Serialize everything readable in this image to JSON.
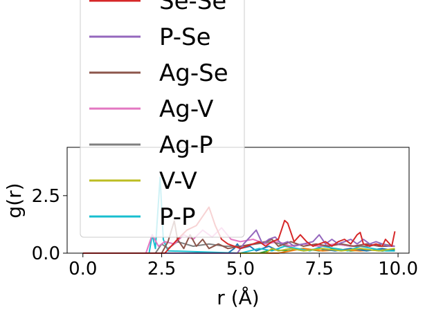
{
  "chart_data": {
    "type": "line",
    "title": "",
    "xlabel": "r (Å)",
    "ylabel": "g(r)",
    "xlim": [
      -0.5,
      10.35
    ],
    "ylim": [
      0,
      4.6
    ],
    "xticks": [
      "0.0",
      "2.5",
      "5.0",
      "7.5",
      "10.0"
    ],
    "xtick_values": [
      0,
      2.5,
      5,
      7.5,
      10
    ],
    "yticks": [
      "0.0",
      "2.5"
    ],
    "ytick_values": [
      0,
      2.5
    ],
    "grid": false,
    "legend_position": "upper-left, extending above the axes",
    "series": [
      {
        "name": "Se-Se",
        "color": "#d62728",
        "points": [
          [
            0,
            0
          ],
          [
            2.0,
            0
          ],
          [
            2.6,
            0
          ],
          [
            3.0,
            0.6
          ],
          [
            3.3,
            1.0
          ],
          [
            3.6,
            1.2
          ],
          [
            3.8,
            1.6
          ],
          [
            4.0,
            2.0
          ],
          [
            4.2,
            1.2
          ],
          [
            4.4,
            0.6
          ],
          [
            4.6,
            0.4
          ],
          [
            4.8,
            0.3
          ],
          [
            5.0,
            0.2
          ],
          [
            5.2,
            0.3
          ],
          [
            5.4,
            0.4
          ],
          [
            5.6,
            0.5
          ],
          [
            5.8,
            0.3
          ],
          [
            6.0,
            0.5
          ],
          [
            6.2,
            0.6
          ],
          [
            6.3,
            1.0
          ],
          [
            6.4,
            1.42
          ],
          [
            6.5,
            1.3
          ],
          [
            6.6,
            0.9
          ],
          [
            6.7,
            0.5
          ],
          [
            6.9,
            0.8
          ],
          [
            7.1,
            0.5
          ],
          [
            7.3,
            0.3
          ],
          [
            7.5,
            0.4
          ],
          [
            7.7,
            0.5
          ],
          [
            7.9,
            0.3
          ],
          [
            8.1,
            0.5
          ],
          [
            8.3,
            0.6
          ],
          [
            8.5,
            0.4
          ],
          [
            8.7,
            0.8
          ],
          [
            8.8,
            0.9
          ],
          [
            8.9,
            0.4
          ],
          [
            9.1,
            0.3
          ],
          [
            9.3,
            0.4
          ],
          [
            9.5,
            0.3
          ],
          [
            9.6,
            0.6
          ],
          [
            9.8,
            0.3
          ],
          [
            9.9,
            0.95
          ]
        ]
      },
      {
        "name": "P-Se",
        "color": "#9467bd",
        "points": [
          [
            0,
            0
          ],
          [
            4.9,
            0
          ],
          [
            5.1,
            0.4
          ],
          [
            5.3,
            0.7
          ],
          [
            5.5,
            1.0
          ],
          [
            5.7,
            0.4
          ],
          [
            5.9,
            0.6
          ],
          [
            6.1,
            0.7
          ],
          [
            6.3,
            0.4
          ],
          [
            6.5,
            0.5
          ],
          [
            6.7,
            0.3
          ],
          [
            7.0,
            0.4
          ],
          [
            7.3,
            0.5
          ],
          [
            7.5,
            0.8
          ],
          [
            7.7,
            0.4
          ],
          [
            7.9,
            0.6
          ],
          [
            8.1,
            0.4
          ],
          [
            8.3,
            0.5
          ],
          [
            8.5,
            0.6
          ],
          [
            8.7,
            0.4
          ],
          [
            8.9,
            0.6
          ],
          [
            9.1,
            0.4
          ],
          [
            9.3,
            0.5
          ],
          [
            9.5,
            0.4
          ],
          [
            9.7,
            0.3
          ],
          [
            9.9,
            0.3
          ]
        ]
      },
      {
        "name": "Ag-Se",
        "color": "#8c564b",
        "points": [
          [
            0,
            0
          ],
          [
            2.5,
            0
          ],
          [
            2.7,
            0.5
          ],
          [
            2.9,
            1.4
          ],
          [
            3.0,
            0.6
          ],
          [
            3.2,
            0.2
          ],
          [
            3.4,
            0.8
          ],
          [
            3.6,
            0.3
          ],
          [
            3.8,
            0.6
          ],
          [
            4.0,
            0.2
          ],
          [
            4.3,
            0.4
          ],
          [
            4.6,
            0.2
          ],
          [
            5.0,
            0.3
          ],
          [
            5.4,
            0.4
          ],
          [
            5.8,
            0.5
          ],
          [
            6.0,
            0.6
          ],
          [
            6.2,
            0.3
          ],
          [
            6.6,
            0.5
          ],
          [
            7.0,
            0.3
          ],
          [
            7.4,
            0.4
          ],
          [
            7.8,
            0.3
          ],
          [
            8.2,
            0.4
          ],
          [
            8.6,
            0.3
          ],
          [
            9.0,
            0.4
          ],
          [
            9.4,
            0.3
          ],
          [
            9.9,
            0.3
          ]
        ]
      },
      {
        "name": "Ag-V",
        "color": "#e377c2",
        "points": [
          [
            0,
            0
          ],
          [
            2.0,
            0
          ],
          [
            2.2,
            0.8
          ],
          [
            2.4,
            0.3
          ],
          [
            2.6,
            0.5
          ],
          [
            2.9,
            0.4
          ],
          [
            3.2,
            0.8
          ],
          [
            3.5,
            0.6
          ],
          [
            3.8,
            1.0
          ],
          [
            4.1,
            0.7
          ],
          [
            4.4,
            1.1
          ],
          [
            4.7,
            0.6
          ],
          [
            5.0,
            0.5
          ],
          [
            5.4,
            0.6
          ],
          [
            5.8,
            0.4
          ],
          [
            6.2,
            0.5
          ],
          [
            6.6,
            0.3
          ],
          [
            7.0,
            0.4
          ],
          [
            7.5,
            0.3
          ],
          [
            8.0,
            0.4
          ],
          [
            8.5,
            0.3
          ],
          [
            9.0,
            0.4
          ],
          [
            9.5,
            0.3
          ],
          [
            9.9,
            0.3
          ]
        ]
      },
      {
        "name": "Ag-P",
        "color": "#7f7f7f",
        "points": [
          [
            0,
            0
          ],
          [
            2.3,
            0
          ],
          [
            2.5,
            0.4
          ],
          [
            2.7,
            0.2
          ],
          [
            3.0,
            0.5
          ],
          [
            3.5,
            0.3
          ],
          [
            4.0,
            0.4
          ],
          [
            4.5,
            0.3
          ],
          [
            5.0,
            0.3
          ],
          [
            5.5,
            0.4
          ],
          [
            6.0,
            0.5
          ],
          [
            6.5,
            0.3
          ],
          [
            7.0,
            0.4
          ],
          [
            7.5,
            0.3
          ],
          [
            8.0,
            0.4
          ],
          [
            8.5,
            0.3
          ],
          [
            9.0,
            0.3
          ],
          [
            9.5,
            0.4
          ],
          [
            9.9,
            0.3
          ]
        ]
      },
      {
        "name": "V-V",
        "color": "#bcbd22",
        "points": [
          [
            0,
            0
          ],
          [
            5.8,
            0
          ],
          [
            6.0,
            0.2
          ],
          [
            6.2,
            0.1
          ],
          [
            6.6,
            0.2
          ],
          [
            7.0,
            0.1
          ],
          [
            7.6,
            0.2
          ],
          [
            8.2,
            0.1
          ],
          [
            8.8,
            0.2
          ],
          [
            9.4,
            0.1
          ],
          [
            9.9,
            0.2
          ]
        ]
      },
      {
        "name": "P-P",
        "color": "#17becf",
        "points": [
          [
            0,
            0
          ],
          [
            2.1,
            0
          ],
          [
            2.2,
            0.8
          ],
          [
            2.3,
            0.2
          ],
          [
            2.45,
            3.3
          ],
          [
            2.55,
            0.6
          ],
          [
            2.7,
            0.1
          ],
          [
            5.0,
            0
          ],
          [
            5.6,
            0.2
          ],
          [
            6.0,
            0.1
          ],
          [
            6.4,
            0.3
          ],
          [
            6.8,
            0.2
          ],
          [
            7.2,
            0.1
          ],
          [
            7.6,
            0.3
          ],
          [
            8.0,
            0.2
          ],
          [
            8.4,
            0.1
          ],
          [
            8.8,
            0.3
          ],
          [
            9.2,
            0.2
          ],
          [
            9.6,
            0.1
          ],
          [
            9.9,
            0.1
          ]
        ]
      },
      {
        "name": "",
        "color": "#1f77b4",
        "points": [
          [
            0,
            0
          ],
          [
            4.6,
            0
          ],
          [
            4.8,
            0.2
          ],
          [
            4.9,
            0.4
          ],
          [
            5.0,
            0.2
          ],
          [
            5.3,
            0.3
          ],
          [
            5.5,
            0.1
          ],
          [
            5.9,
            0.3
          ],
          [
            6.2,
            0.1
          ],
          [
            6.6,
            0.2
          ],
          [
            7.0,
            0.1
          ],
          [
            7.5,
            0.2
          ],
          [
            8.0,
            0.1
          ],
          [
            8.5,
            0.2
          ],
          [
            9.0,
            0.1
          ],
          [
            9.5,
            0.2
          ],
          [
            9.9,
            0.1
          ]
        ]
      },
      {
        "name": "",
        "color": "#ff7f0e",
        "points": [
          [
            0,
            0
          ],
          [
            6.2,
            0
          ],
          [
            6.6,
            0.1
          ],
          [
            7.0,
            0.2
          ],
          [
            7.6,
            0.1
          ],
          [
            8.2,
            0.15
          ],
          [
            8.8,
            0.1
          ],
          [
            9.4,
            0.15
          ],
          [
            9.9,
            0.1
          ]
        ]
      },
      {
        "name": "",
        "color": "#2ca02c",
        "points": [
          [
            0,
            0
          ],
          [
            5.6,
            0
          ],
          [
            6.0,
            0.15
          ],
          [
            6.5,
            0.1
          ],
          [
            7.0,
            0.2
          ],
          [
            7.5,
            0.1
          ],
          [
            8.0,
            0.2
          ],
          [
            8.5,
            0.1
          ],
          [
            9.0,
            0.15
          ],
          [
            9.5,
            0.1
          ],
          [
            9.9,
            0.15
          ]
        ]
      }
    ]
  }
}
